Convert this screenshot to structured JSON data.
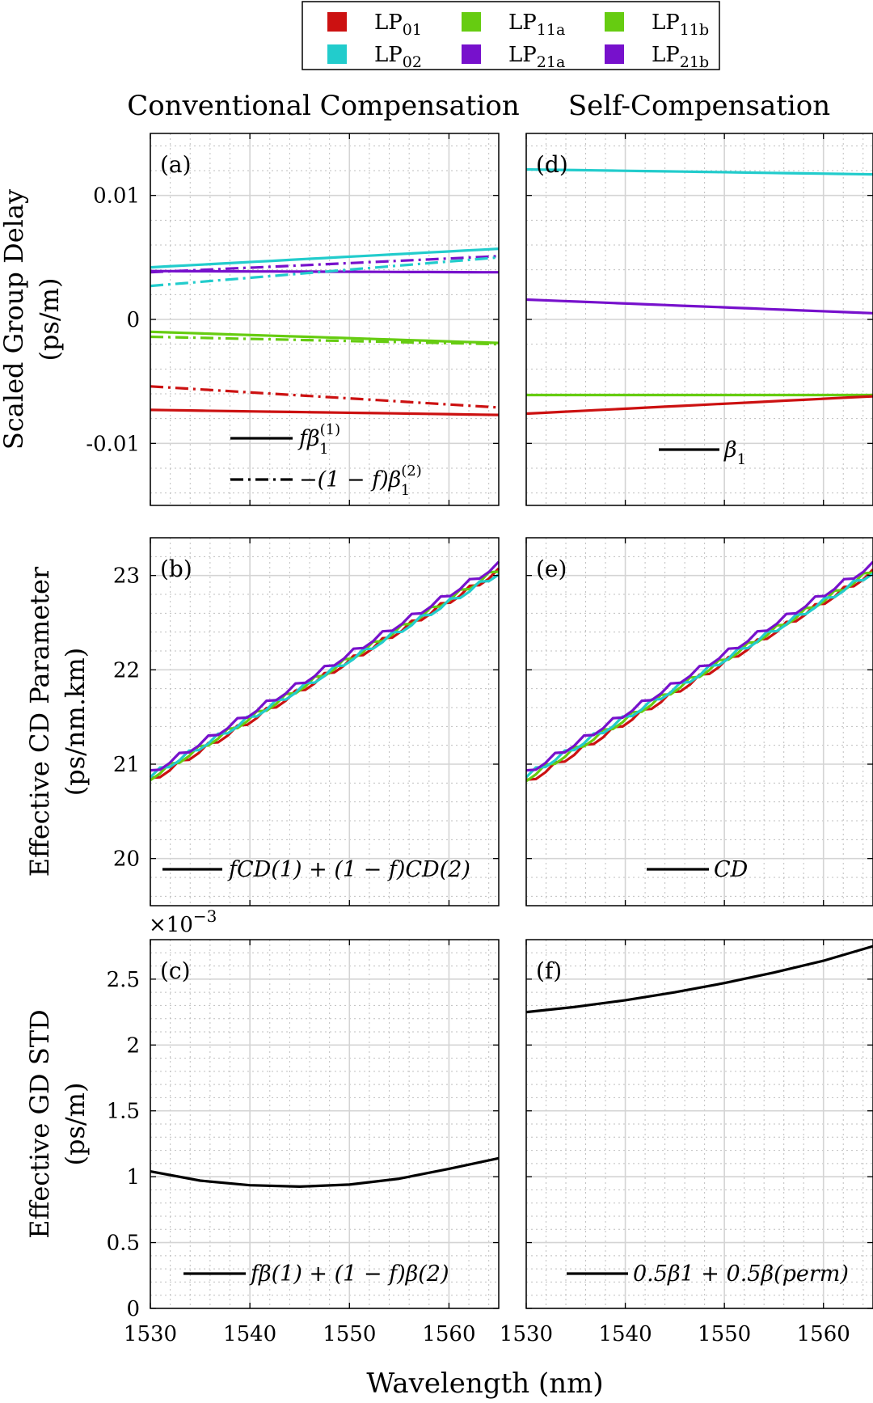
{
  "legend": {
    "items": [
      {
        "base": "LP",
        "sub": "01",
        "color": "#cc1111"
      },
      {
        "base": "LP",
        "sub": "11a",
        "color": "#66cc11"
      },
      {
        "base": "LP",
        "sub": "11b",
        "color": "#66cc11"
      },
      {
        "base": "LP",
        "sub": "02",
        "color": "#22cccc"
      },
      {
        "base": "LP",
        "sub": "21a",
        "color": "#7711cc"
      },
      {
        "base": "LP",
        "sub": "21b",
        "color": "#7711cc"
      }
    ]
  },
  "columns": {
    "left_title": "Conventional Compensation",
    "right_title": "Self-Compensation"
  },
  "xlabel": "Wavelength (nm)",
  "chart_data": [
    {
      "id": "a",
      "label": "(a)",
      "type": "line",
      "row": 0,
      "col": 0,
      "ylabel_line1": "Scaled Group Delay",
      "ylabel_line2": "(ps/m)",
      "xlim": [
        1530,
        1565
      ],
      "ylim": [
        -0.015,
        0.015
      ],
      "xticks": [
        1530,
        1540,
        1550,
        1560
      ],
      "xticklabels": [
        "1530",
        "1540",
        "1550",
        "1560"
      ],
      "yticks": [
        -0.01,
        0,
        0.01
      ],
      "yticklabels": [
        "-0.01",
        "0",
        "0.01"
      ],
      "x": [
        1530,
        1565
      ],
      "series": [
        {
          "name": "LP02",
          "color": "#22cccc",
          "style": "solid",
          "values": [
            0.0042,
            0.0057
          ]
        },
        {
          "name": "LP21a",
          "color": "#7711cc",
          "style": "solid",
          "values": [
            0.0039,
            0.0038
          ]
        },
        {
          "name": "LP21b",
          "color": "#7711cc",
          "style": "dashdot",
          "values": [
            0.0038,
            0.0051
          ]
        },
        {
          "name": "LP02",
          "color": "#22cccc",
          "style": "dashdot",
          "values": [
            0.0027,
            0.005
          ]
        },
        {
          "name": "LP11a",
          "color": "#66cc11",
          "style": "solid",
          "values": [
            -0.001,
            -0.0019
          ]
        },
        {
          "name": "LP11b",
          "color": "#66cc11",
          "style": "dashdot",
          "values": [
            -0.0014,
            -0.002
          ]
        },
        {
          "name": "LP01",
          "color": "#cc1111",
          "style": "dashdot",
          "values": [
            -0.0054,
            -0.0071
          ]
        },
        {
          "name": "LP01",
          "color": "#cc1111",
          "style": "solid",
          "values": [
            -0.0073,
            -0.0077
          ]
        }
      ],
      "legend_entries": [
        {
          "style": "solid",
          "text": "fβ",
          "sup": "(1)",
          "sub": "1"
        },
        {
          "style": "dashdot",
          "text": "−(1 − f)β",
          "sup": "(2)",
          "sub": "1"
        }
      ]
    },
    {
      "id": "d",
      "label": "(d)",
      "type": "line",
      "row": 0,
      "col": 1,
      "xlim": [
        1530,
        1565
      ],
      "ylim": [
        -0.015,
        0.015
      ],
      "xticks": [
        1530,
        1540,
        1550,
        1560
      ],
      "xticklabels": [
        "1530",
        "1540",
        "1550",
        "1560"
      ],
      "yticks": [
        -0.01,
        0,
        0.01
      ],
      "yticklabels": [],
      "x": [
        1530,
        1565
      ],
      "series": [
        {
          "name": "LP02",
          "color": "#22cccc",
          "style": "solid",
          "values": [
            0.0121,
            0.0117
          ]
        },
        {
          "name": "LP21",
          "color": "#7711cc",
          "style": "solid",
          "values": [
            0.0016,
            0.0005
          ]
        },
        {
          "name": "LP11",
          "color": "#66cc11",
          "style": "solid",
          "values": [
            -0.0061,
            -0.0061
          ]
        },
        {
          "name": "LP01",
          "color": "#cc1111",
          "style": "solid",
          "values": [
            -0.0076,
            -0.0062
          ]
        }
      ],
      "legend_entries": [
        {
          "style": "solid",
          "text": "β",
          "sup": "",
          "sub": "1"
        }
      ]
    },
    {
      "id": "b",
      "label": "(b)",
      "type": "line",
      "row": 1,
      "col": 0,
      "ylabel_line1": "Effective CD Parameter",
      "ylabel_line2": "(ps/nm.km)",
      "xlim": [
        1530,
        1565
      ],
      "ylim": [
        19.5,
        23.4
      ],
      "xticks": [
        1530,
        1540,
        1550,
        1560
      ],
      "xticklabels": [
        "1530",
        "1540",
        "1550",
        "1560"
      ],
      "yticks": [
        20,
        21,
        22,
        23
      ],
      "yticklabels": [
        "20",
        "21",
        "22",
        "23"
      ],
      "x": [
        1530,
        1565
      ],
      "series": [
        {
          "name": "LP01",
          "color": "#cc1111",
          "style": "solid",
          "values": [
            20.82,
            23.04
          ]
        },
        {
          "name": "LP11a",
          "color": "#66cc11",
          "style": "solid",
          "values": [
            20.85,
            23.06
          ]
        },
        {
          "name": "LP02",
          "color": "#22cccc",
          "style": "solid",
          "values": [
            20.87,
            23.02
          ]
        },
        {
          "name": "LP21a",
          "color": "#7711cc",
          "style": "solid",
          "values": [
            20.9,
            23.11
          ]
        }
      ],
      "legend_entries": [
        {
          "style": "solid",
          "text": "fCD(1) + (1 − f)CD(2)",
          "sup": "",
          "sub": ""
        }
      ]
    },
    {
      "id": "e",
      "label": "(e)",
      "type": "line",
      "row": 1,
      "col": 1,
      "xlim": [
        1530,
        1565
      ],
      "ylim": [
        19.5,
        23.4
      ],
      "xticks": [
        1530,
        1540,
        1550,
        1560
      ],
      "xticklabels": [
        "1530",
        "1540",
        "1550",
        "1560"
      ],
      "yticks": [
        20,
        21,
        22,
        23
      ],
      "yticklabels": [],
      "x": [
        1530,
        1565
      ],
      "series": [
        {
          "name": "LP01",
          "color": "#cc1111",
          "style": "solid",
          "values": [
            20.8,
            23.03
          ]
        },
        {
          "name": "LP11a",
          "color": "#66cc11",
          "style": "solid",
          "values": [
            20.84,
            23.05
          ]
        },
        {
          "name": "LP02",
          "color": "#22cccc",
          "style": "solid",
          "values": [
            20.87,
            23.03
          ]
        },
        {
          "name": "LP21a",
          "color": "#7711cc",
          "style": "solid",
          "values": [
            20.9,
            23.11
          ]
        }
      ],
      "legend_entries": [
        {
          "style": "solid",
          "text": "CD",
          "sup": "",
          "sub": ""
        }
      ]
    },
    {
      "id": "c",
      "label": "(c)",
      "type": "line",
      "row": 2,
      "col": 0,
      "ylabel_line1": "Effective GD STD",
      "ylabel_line2": "(ps/m)",
      "exponent": "×10−3",
      "xlim": [
        1530,
        1565
      ],
      "ylim": [
        0,
        2.8
      ],
      "xticks": [
        1530,
        1540,
        1550,
        1560
      ],
      "xticklabels": [
        "1530",
        "1540",
        "1550",
        "1560"
      ],
      "yticks": [
        0,
        0.5,
        1,
        1.5,
        2,
        2.5
      ],
      "yticklabels": [
        "0",
        "0.5",
        "1",
        "1.5",
        "2",
        "2.5"
      ],
      "x": [
        1530,
        1535,
        1540,
        1545,
        1550,
        1555,
        1560,
        1565
      ],
      "series": [
        {
          "name": "GD STD",
          "color": "#000000",
          "style": "solid",
          "values": [
            1.04,
            0.97,
            0.935,
            0.925,
            0.94,
            0.985,
            1.06,
            1.14
          ]
        }
      ],
      "legend_entries": [
        {
          "style": "solid",
          "text": "fβ(1) + (1 − f)β(2)",
          "sup": "",
          "sub": ""
        }
      ]
    },
    {
      "id": "f",
      "label": "(f)",
      "type": "line",
      "row": 2,
      "col": 1,
      "xlim": [
        1530,
        1565
      ],
      "ylim": [
        0,
        2.8
      ],
      "xticks": [
        1530,
        1540,
        1550,
        1560
      ],
      "xticklabels": [
        "1530",
        "1540",
        "1550",
        "1560"
      ],
      "yticks": [
        0,
        0.5,
        1,
        1.5,
        2,
        2.5
      ],
      "yticklabels": [],
      "x": [
        1530,
        1535,
        1540,
        1545,
        1550,
        1555,
        1560,
        1565
      ],
      "series": [
        {
          "name": "GD STD",
          "color": "#000000",
          "style": "solid",
          "values": [
            2.25,
            2.29,
            2.34,
            2.4,
            2.47,
            2.55,
            2.64,
            2.75
          ]
        }
      ],
      "legend_entries": [
        {
          "style": "solid",
          "text": "0.5β1 + 0.5β(perm)",
          "sup": "",
          "sub": ""
        }
      ]
    }
  ]
}
